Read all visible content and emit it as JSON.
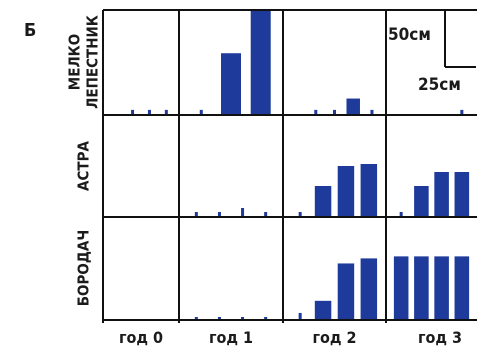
{
  "panel_letter": "Б",
  "scale_bar": {
    "vertical_label": "50см",
    "horizontal_label": "25см"
  },
  "chart_data": {
    "type": "bar",
    "rows": [
      "МЕЛКО\nЛЕПЕСТНИК",
      "АСТРА",
      "БОРОДАЧ"
    ],
    "columns": [
      "год 0",
      "год 1",
      "год 2",
      "год 3"
    ],
    "xlabel": "",
    "ylabel": "",
    "grid": false,
    "panels": [
      [
        [
          0,
          0.04,
          0.04,
          0.04
        ],
        [
          0.04,
          0.59,
          1.0
        ],
        [
          0,
          0.04,
          0.04,
          0.15,
          0.04
        ],
        [
          0,
          0,
          0,
          0.04
        ]
      ],
      [
        [
          0,
          0,
          0,
          0
        ],
        [
          0.04,
          0.04,
          0.08,
          0.04
        ],
        [
          0.04,
          0.3,
          0.5,
          0.52
        ],
        [
          0.04,
          0.3,
          0.44,
          0.44
        ]
      ],
      [
        [
          0,
          0,
          0,
          0
        ],
        [
          0.02,
          0.02,
          0.02,
          0.02
        ],
        [
          0.06,
          0.18,
          0.55,
          0.6
        ],
        [
          0.62,
          0.62,
          0.62,
          0.62
        ]
      ]
    ]
  }
}
